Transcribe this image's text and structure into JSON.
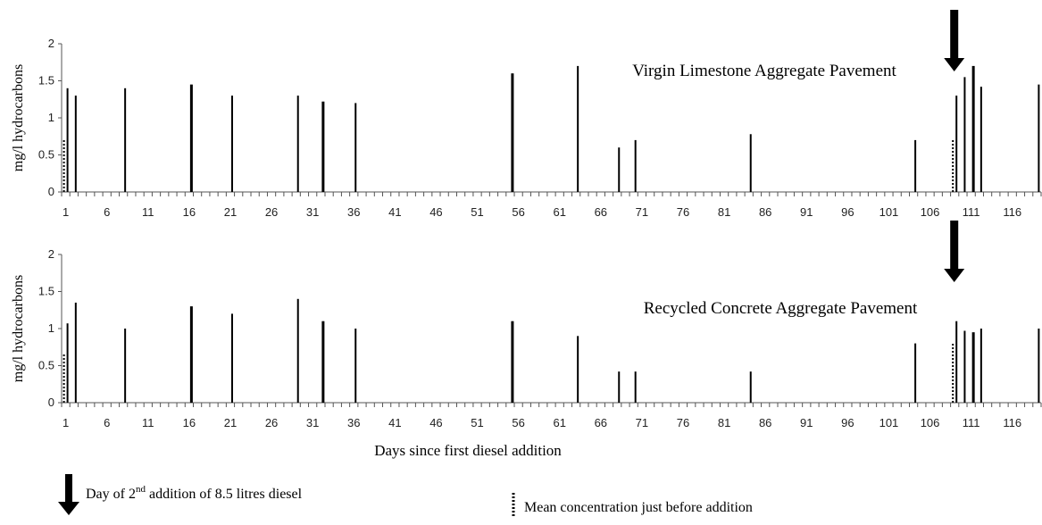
{
  "chart_data": {
    "type": "bar",
    "x_axis": {
      "min": 1,
      "max": 119,
      "tick_labels": [
        "1",
        "6",
        "11",
        "16",
        "21",
        "26",
        "31",
        "36",
        "41",
        "46",
        "51",
        "56",
        "61",
        "66",
        "71",
        "76",
        "81",
        "86",
        "91",
        "96",
        "101",
        "106",
        "111",
        "116"
      ],
      "label": "Days since first diesel addition"
    },
    "ylabel": "mg/l hydrocarbons",
    "ylim": [
      0,
      2
    ],
    "y_ticks": [
      "0",
      "0.5",
      "1",
      "1.5",
      "2"
    ],
    "panels": [
      {
        "title": "Virgin Limestone Aggregate Pavement",
        "x": [
          1,
          2,
          8,
          16,
          21,
          29,
          32,
          36,
          55,
          63,
          68,
          70,
          84,
          104,
          109,
          110,
          111,
          112,
          119
        ],
        "values": [
          1.4,
          1.3,
          1.4,
          1.45,
          1.3,
          1.3,
          1.22,
          1.2,
          1.6,
          1.7,
          0.6,
          0.7,
          0.78,
          0.7,
          1.3,
          1.55,
          1.7,
          1.42,
          1.45
        ],
        "mean_before": [
          {
            "x": 1,
            "value": 0.72
          },
          {
            "x": 109,
            "value": 0.72
          }
        ],
        "second_addition_day": 109
      },
      {
        "title": "Recycled Concrete Aggregate Pavement",
        "x": [
          1,
          2,
          8,
          16,
          21,
          29,
          32,
          36,
          55,
          63,
          68,
          70,
          84,
          104,
          109,
          110,
          111,
          112,
          119
        ],
        "values": [
          1.07,
          1.35,
          1.0,
          1.3,
          1.2,
          1.4,
          1.1,
          1.0,
          1.1,
          0.9,
          0.42,
          0.42,
          0.42,
          0.8,
          1.1,
          0.97,
          0.95,
          1.0,
          1.0
        ],
        "mean_before": [
          {
            "x": 1,
            "value": 0.65
          },
          {
            "x": 109,
            "value": 0.82
          }
        ],
        "second_addition_day": 109
      }
    ]
  },
  "legend": {
    "arrow_text_pre": "Day of  2",
    "arrow_text_sup": "nd",
    "arrow_text_post": " addition of 8.5 litres diesel",
    "dotted_text": "Mean concentration just before addition"
  }
}
